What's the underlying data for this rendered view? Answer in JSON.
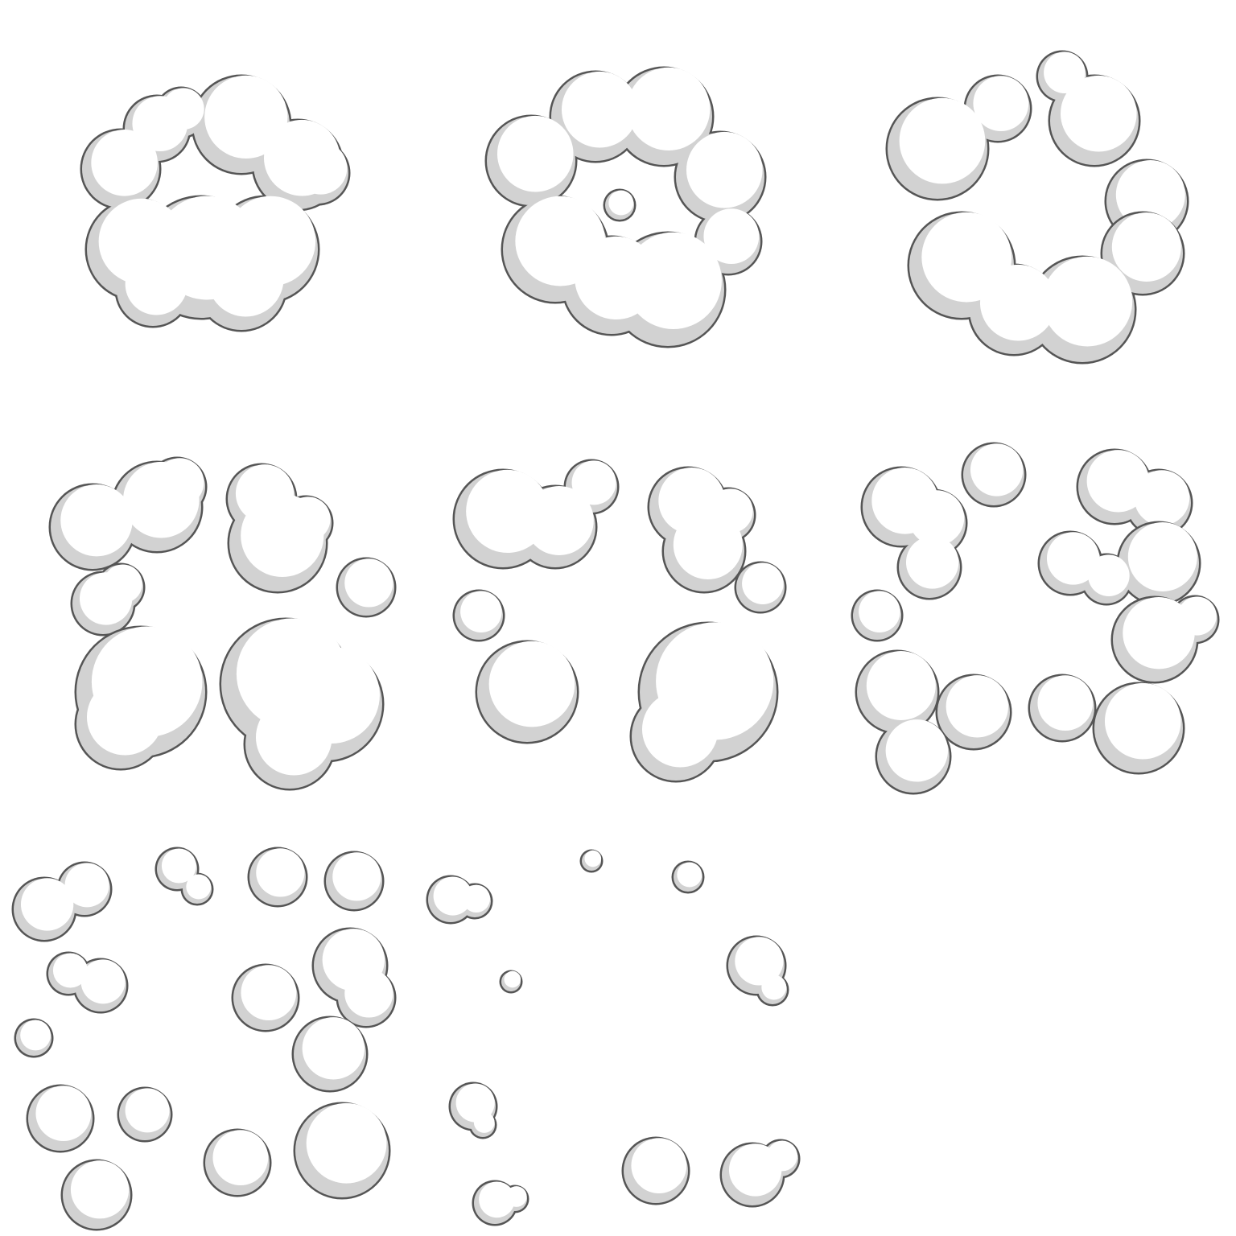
{
  "sprite_sheet": {
    "kind": "cloud puff animation frames",
    "frame_count": 8,
    "grid": {
      "columns": 3,
      "rows": 3
    },
    "colors": {
      "background": "#ffffff",
      "fill": "#ffffff",
      "shade": "#d2d2d2",
      "outline": "#555555"
    },
    "frames": [
      {
        "index": 1,
        "name": "frame-1"
      },
      {
        "index": 2,
        "name": "frame-2"
      },
      {
        "index": 3,
        "name": "frame-3"
      },
      {
        "index": 4,
        "name": "frame-4"
      },
      {
        "index": 5,
        "name": "frame-5"
      },
      {
        "index": 6,
        "name": "frame-6"
      },
      {
        "index": 7,
        "name": "frame-7"
      },
      {
        "index": 8,
        "name": "frame-8"
      }
    ]
  }
}
